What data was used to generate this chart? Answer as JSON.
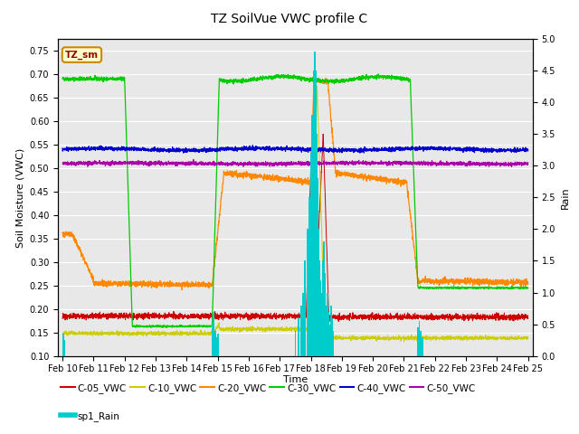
{
  "title": "TZ SoilVue VWC profile C",
  "xlabel": "Time",
  "ylabel_left": "Soil Moisture (VWC)",
  "ylabel_right": "Rain",
  "ylim_left": [
    0.1,
    0.775
  ],
  "ylim_right": [
    0.0,
    5.0
  ],
  "yticks_left": [
    0.1,
    0.15,
    0.2,
    0.25,
    0.3,
    0.35,
    0.4,
    0.45,
    0.5,
    0.55,
    0.6,
    0.65,
    0.7,
    0.75
  ],
  "yticks_right": [
    0.0,
    0.5,
    1.0,
    1.5,
    2.0,
    2.5,
    3.0,
    3.5,
    4.0,
    4.5,
    5.0
  ],
  "colors": {
    "C05": "#cc0000",
    "C10": "#cccc00",
    "C20": "#ff8800",
    "C30": "#00cc00",
    "C40": "#0000cc",
    "C50": "#aa00aa",
    "rain": "#00cccc"
  },
  "background_color": "#e8e8e8",
  "legend_box_color": "#ffffcc",
  "legend_box_edge": "#cc8800",
  "annotation_text": "TZ_sm",
  "title_fontsize": 10,
  "label_fontsize": 8,
  "tick_fontsize": 7
}
